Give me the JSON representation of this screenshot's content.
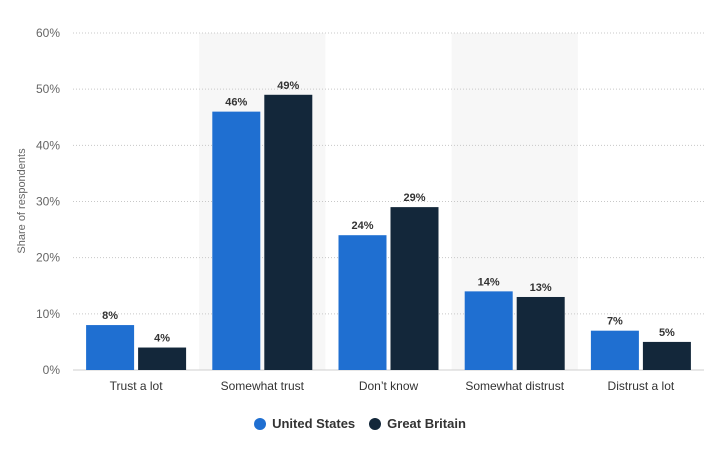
{
  "chart_data": {
    "type": "bar",
    "categories": [
      "Trust a lot",
      "Somewhat trust",
      "Don’t know",
      "Somewhat distrust",
      "Distrust a lot"
    ],
    "series": [
      {
        "name": "United States",
        "values": [
          8,
          46,
          24,
          14,
          7
        ],
        "labels": [
          "8%",
          "46%",
          "24%",
          "14%",
          "7%"
        ],
        "color": "#1f6fd1"
      },
      {
        "name": "Great Britain",
        "values": [
          4,
          49,
          29,
          13,
          5
        ],
        "labels": [
          "4%",
          "49%",
          "29%",
          "13%",
          "5%"
        ],
        "color": "#13273a"
      }
    ],
    "ylabel": "Share of respondents",
    "ylim": [
      0,
      60
    ],
    "yticks": [
      "0%",
      "10%",
      "20%",
      "30%",
      "40%",
      "50%",
      "60%"
    ],
    "grid": true,
    "legend_position": "bottom-center",
    "band_color": "#f7f7f7"
  }
}
